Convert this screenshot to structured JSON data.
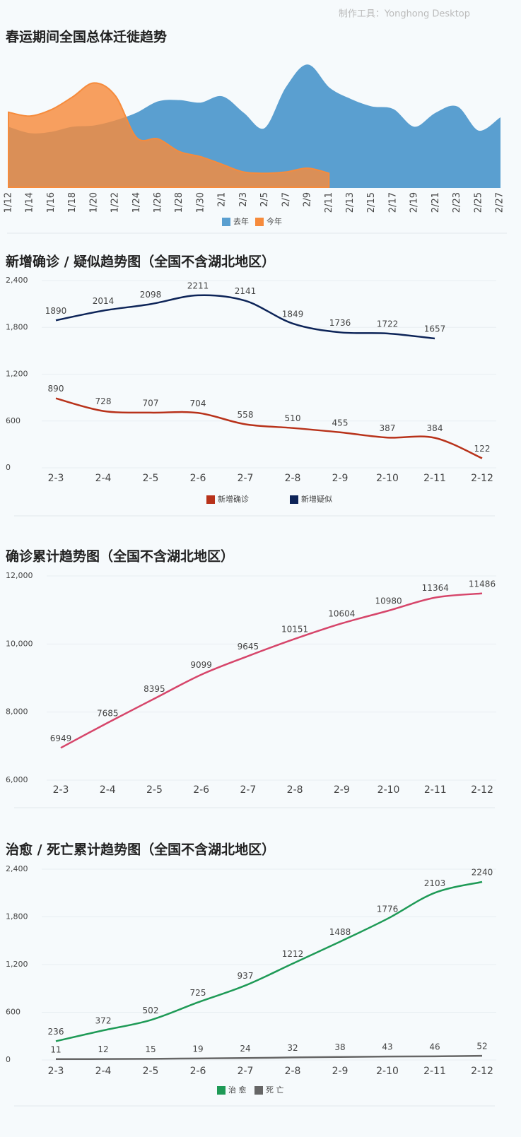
{
  "watermark": "制作工具：Yonghong Desktop",
  "chart_data": [
    {
      "type": "area",
      "title": "春运期间全国总体迁徙趋势",
      "categories": [
        "1/12",
        "1/14",
        "1/16",
        "1/18",
        "1/20",
        "1/22",
        "1/24",
        "1/26",
        "1/28",
        "1/30",
        "2/1",
        "2/3",
        "2/5",
        "2/7",
        "2/9",
        "2/11",
        "2/13",
        "2/15",
        "2/17",
        "2/19",
        "2/21",
        "2/23",
        "2/25",
        "2/27"
      ],
      "ylim": [
        0,
        100
      ],
      "series": [
        {
          "name": "去年",
          "color": "#5a9fd0",
          "values": [
            47,
            42,
            43,
            47,
            48,
            52,
            58,
            67,
            68,
            66,
            71,
            58,
            46,
            78,
            96,
            78,
            69,
            63,
            61,
            47,
            58,
            63,
            44,
            54
          ]
        },
        {
          "name": "今年",
          "color": "#f68b3c",
          "values": [
            59,
            56,
            61,
            71,
            82,
            72,
            39,
            38,
            28,
            24,
            18,
            12,
            11,
            12,
            15,
            11,
            null,
            null,
            null,
            null,
            null,
            null,
            null,
            null
          ]
        }
      ]
    },
    {
      "type": "line",
      "title": "新增确诊 / 疑似趋势图（全国不含湖北地区）",
      "categories": [
        "2-3",
        "2-4",
        "2-5",
        "2-6",
        "2-7",
        "2-8",
        "2-9",
        "2-10",
        "2-11",
        "2-12"
      ],
      "ylim": [
        0,
        2400
      ],
      "yticks": [
        0,
        600,
        {
          "value": 1200,
          "label": "1,200"
        },
        {
          "value": 1800,
          "label": "1,800"
        },
        {
          "value": 2400,
          "label": "2,400"
        }
      ],
      "grid": true,
      "series": [
        {
          "name": "新增确诊",
          "color": "#b8321a",
          "values": [
            890,
            728,
            707,
            704,
            558,
            510,
            455,
            387,
            384,
            122
          ]
        },
        {
          "name": "新增疑似",
          "color": "#0d2458",
          "values": [
            1890,
            2014,
            2098,
            2211,
            2141,
            1849,
            1736,
            1722,
            1657,
            null
          ]
        }
      ]
    },
    {
      "type": "line",
      "title": "确诊累计趋势图（全国不含湖北地区）",
      "categories": [
        "2-3",
        "2-4",
        "2-5",
        "2-6",
        "2-7",
        "2-8",
        "2-9",
        "2-10",
        "2-11",
        "2-12"
      ],
      "ylim": [
        6000,
        12000
      ],
      "yticks": [
        {
          "value": 6000,
          "label": "6,000"
        },
        {
          "value": 8000,
          "label": "8,000"
        },
        {
          "value": 10000,
          "label": "10,000"
        },
        {
          "value": 12000,
          "label": "12,000"
        }
      ],
      "grid": true,
      "color": "#d6456a",
      "values": [
        6949,
        7685,
        8395,
        9099,
        9645,
        10151,
        10604,
        10980,
        11364,
        11486
      ]
    },
    {
      "type": "line",
      "title": "治愈 / 死亡累计趋势图（全国不含湖北地区）",
      "categories": [
        "2-3",
        "2-4",
        "2-5",
        "2-6",
        "2-7",
        "2-8",
        "2-9",
        "2-10",
        "2-11",
        "2-12"
      ],
      "ylim": [
        0,
        2400
      ],
      "yticks": [
        0,
        600,
        {
          "value": 1200,
          "label": "1,200"
        },
        {
          "value": 1800,
          "label": "1,800"
        },
        {
          "value": 2400,
          "label": "2,400"
        }
      ],
      "grid": true,
      "series": [
        {
          "name": "治 愈",
          "color": "#1e9a56",
          "values": [
            236,
            372,
            502,
            725,
            937,
            1212,
            1488,
            1776,
            2103,
            2240
          ]
        },
        {
          "name": "死 亡",
          "color": "#666666",
          "values": [
            11,
            12,
            15,
            19,
            24,
            32,
            38,
            43,
            46,
            52
          ]
        }
      ]
    }
  ]
}
